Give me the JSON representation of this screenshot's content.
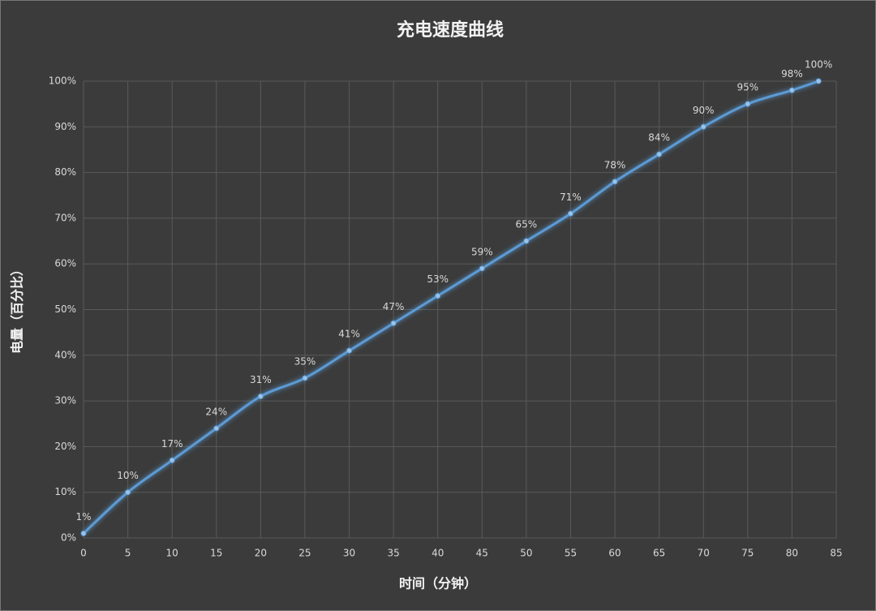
{
  "chart_data": {
    "type": "line",
    "title": "充电速度曲线",
    "x_label": "时间（分钟）",
    "y_label": "电量（百分比）",
    "x": [
      0,
      5,
      10,
      15,
      20,
      25,
      30,
      35,
      40,
      45,
      50,
      55,
      60,
      65,
      70,
      75,
      80,
      83
    ],
    "values": [
      1,
      10,
      17,
      24,
      31,
      35,
      41,
      47,
      53,
      59,
      65,
      71,
      78,
      84,
      90,
      95,
      98,
      100
    ],
    "value_labels": [
      "1%",
      "10%",
      "17%",
      "24%",
      "31%",
      "35%",
      "41%",
      "47%",
      "53%",
      "59%",
      "65%",
      "71%",
      "78%",
      "84%",
      "90%",
      "95%",
      "98%",
      "100%"
    ],
    "color": "#5b9bd5",
    "xlim": [
      0,
      85
    ],
    "xticks": [
      0,
      5,
      10,
      15,
      20,
      25,
      30,
      35,
      40,
      45,
      50,
      55,
      60,
      65,
      70,
      75,
      80,
      85
    ],
    "ylim": [
      0,
      100
    ],
    "yticks": [
      {
        "value": 0,
        "label": "0%"
      },
      {
        "value": 10,
        "label": "10%"
      },
      {
        "value": 20,
        "label": "20%"
      },
      {
        "value": 30,
        "label": "30%"
      },
      {
        "value": 40,
        "label": "40%"
      },
      {
        "value": 50,
        "label": "50%"
      },
      {
        "value": 60,
        "label": "60%"
      },
      {
        "value": 70,
        "label": "70%"
      },
      {
        "value": 80,
        "label": "80%"
      },
      {
        "value": 90,
        "label": "90%"
      },
      {
        "value": 100,
        "label": "100%"
      }
    ],
    "grid": true
  }
}
